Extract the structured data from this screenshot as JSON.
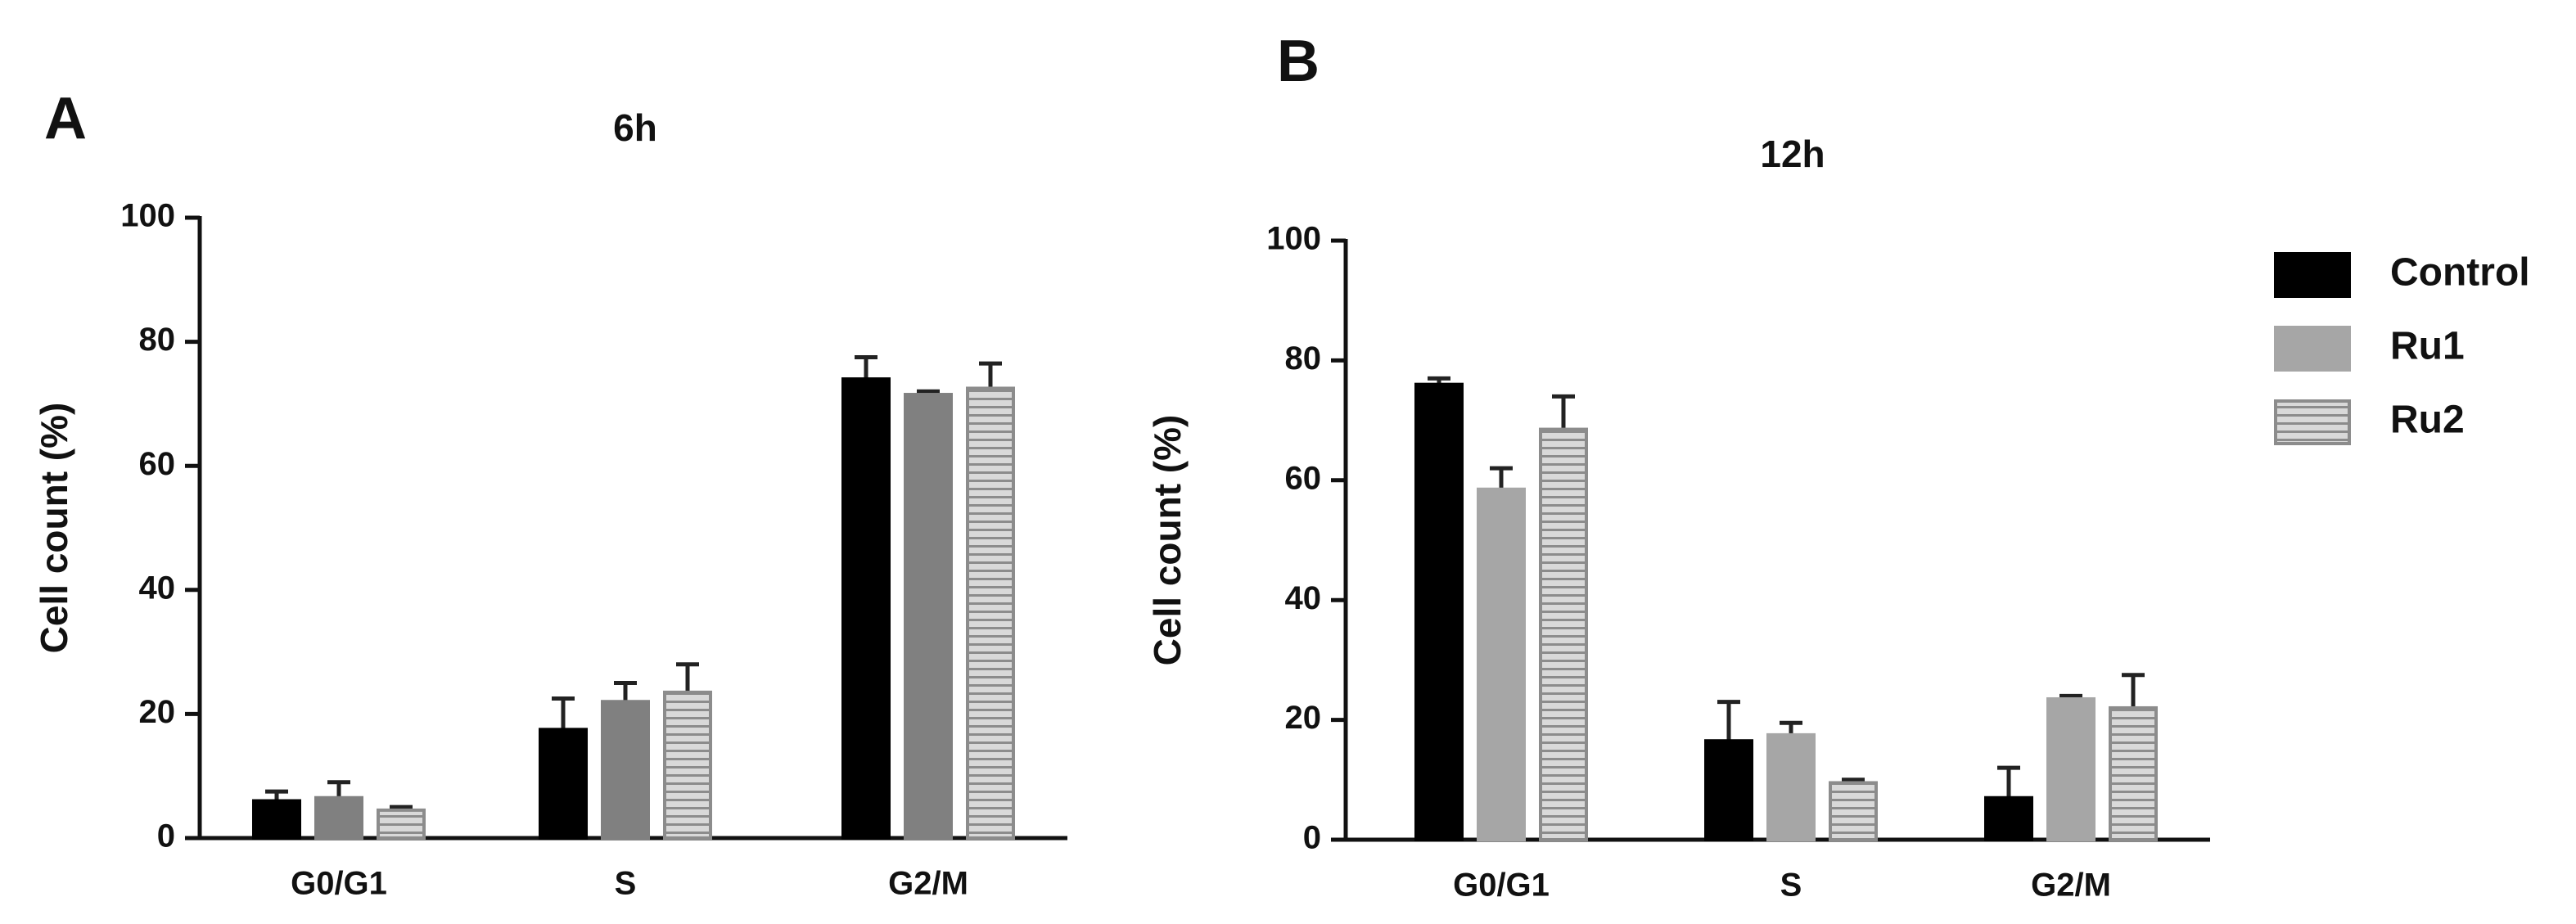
{
  "chart_data": [
    {
      "type": "bar",
      "panel": "A",
      "title": "6h",
      "y_label": "Cell count  (%)",
      "categories": [
        "G0/G1",
        "S",
        "G2/M"
      ],
      "series": [
        {
          "color": "#000000",
          "values": [
            6,
            17.5,
            74
          ],
          "errors": [
            1.5,
            5,
            3.5
          ]
        },
        {
          "color": "#808080",
          "values": [
            6.5,
            22,
            71.5
          ],
          "errors": [
            2.5,
            3,
            0.5
          ]
        },
        {
          "color": "#d9d9d9",
          "pattern": "horizontal-stripes",
          "values": [
            4.5,
            23.5,
            72.5
          ],
          "errors": [
            0.5,
            4.5,
            4
          ]
        }
      ],
      "ylim": [
        0,
        100
      ],
      "yticks": [
        0,
        20,
        40,
        60,
        80,
        100
      ],
      "grid": false
    },
    {
      "type": "bar",
      "panel": "B",
      "title": "12h",
      "y_label": "Cell count  (%)",
      "categories": [
        "G0/G1",
        "S",
        "G2/M"
      ],
      "series": [
        {
          "name": "Control",
          "color": "#000000",
          "values": [
            76,
            16.5,
            7
          ],
          "errors": [
            1,
            6.5,
            5
          ]
        },
        {
          "name": "Ru1",
          "color": "#a6a6a6",
          "values": [
            58.5,
            17.5,
            23.5
          ],
          "errors": [
            3.5,
            2,
            0.5
          ]
        },
        {
          "name": "Ru2",
          "color": "#d9d9d9",
          "pattern": "horizontal-stripes",
          "values": [
            68.5,
            9.5,
            22
          ],
          "errors": [
            5.5,
            0.5,
            5.5
          ]
        }
      ],
      "ylim": [
        0,
        100
      ],
      "yticks": [
        0,
        20,
        40,
        60,
        80,
        100
      ],
      "grid": false,
      "legend": "right"
    }
  ]
}
